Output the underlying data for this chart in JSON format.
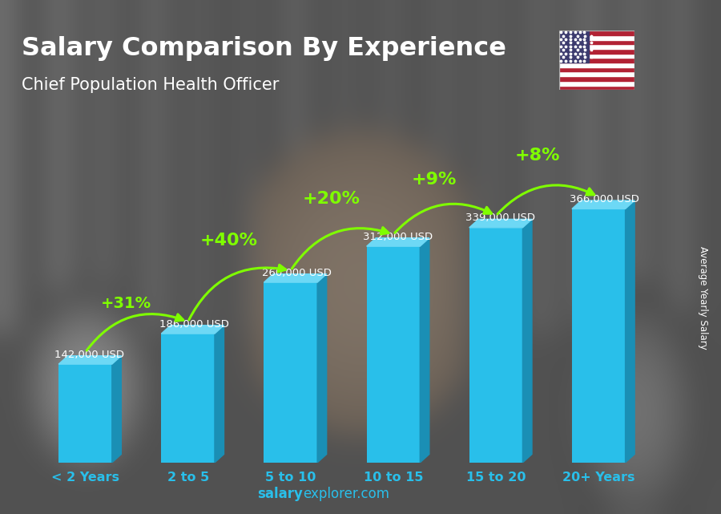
{
  "title": "Salary Comparison By Experience",
  "subtitle": "Chief Population Health Officer",
  "categories": [
    "< 2 Years",
    "2 to 5",
    "5 to 10",
    "10 to 15",
    "15 to 20",
    "20+ Years"
  ],
  "values": [
    142000,
    186000,
    260000,
    312000,
    339000,
    366000
  ],
  "labels": [
    "142,000 USD",
    "186,000 USD",
    "260,000 USD",
    "312,000 USD",
    "339,000 USD",
    "366,000 USD"
  ],
  "pct_labels": [
    "+31%",
    "+40%",
    "+20%",
    "+9%",
    "+8%"
  ],
  "bar_color_face": "#29BFEA",
  "bar_color_right": "#1a8fb5",
  "bar_color_top": "#6DD8F5",
  "title_color": "#FFFFFF",
  "subtitle_color": "#FFFFFF",
  "label_color": "#FFFFFF",
  "pct_color": "#7FFF00",
  "cat_color": "#29BFEA",
  "ylabel": "Average Yearly Salary",
  "footer_bold": "salary",
  "footer_normal": "explorer.com",
  "footer_color": "#29BFEA",
  "ylim": [
    0,
    430000
  ],
  "bar_bottom": 0,
  "figsize": [
    9.0,
    6.41
  ],
  "dpi": 100,
  "arrow_configs": [
    {
      "from": 0,
      "to": 1,
      "pct": "+31%",
      "rad": -0.4,
      "fs": 14
    },
    {
      "from": 1,
      "to": 2,
      "pct": "+40%",
      "rad": -0.4,
      "fs": 16
    },
    {
      "from": 2,
      "to": 3,
      "pct": "+20%",
      "rad": -0.4,
      "fs": 16
    },
    {
      "from": 3,
      "to": 4,
      "pct": "+9%",
      "rad": -0.4,
      "fs": 16
    },
    {
      "from": 4,
      "to": 5,
      "pct": "+8%",
      "rad": -0.4,
      "fs": 16
    }
  ]
}
